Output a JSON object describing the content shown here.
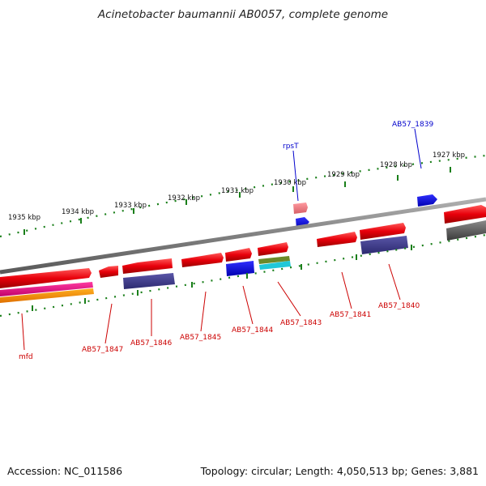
{
  "title": "Acinetobacter baumannii AB0057, complete genome",
  "footer": {
    "accession": "Accession: NC_011586",
    "summary": "Topology: circular; Length: 4,050,513 bp; Genes: 3,881"
  },
  "scale_labels": [
    "1935 kbp",
    "1934 kbp",
    "1933 kbp",
    "1932 kbp",
    "1931 kbp",
    "1930 kbp",
    "1929 kbp",
    "1928 kbp",
    "1927 kbp"
  ],
  "gene_labels_top": [
    "rpsT",
    "AB57_1839"
  ],
  "gene_labels_bottom": [
    "mfd",
    "AB57_1847",
    "AB57_1846",
    "AB57_1845",
    "AB57_1844",
    "AB57_1843",
    "AB57_1841",
    "AB57_1840"
  ],
  "colors": {
    "backbone": "#808080",
    "forward_gene": "#e8000b",
    "top_label": "#0000cc",
    "bottom_label": "#cc0000",
    "tick": "#1a7f1a"
  }
}
